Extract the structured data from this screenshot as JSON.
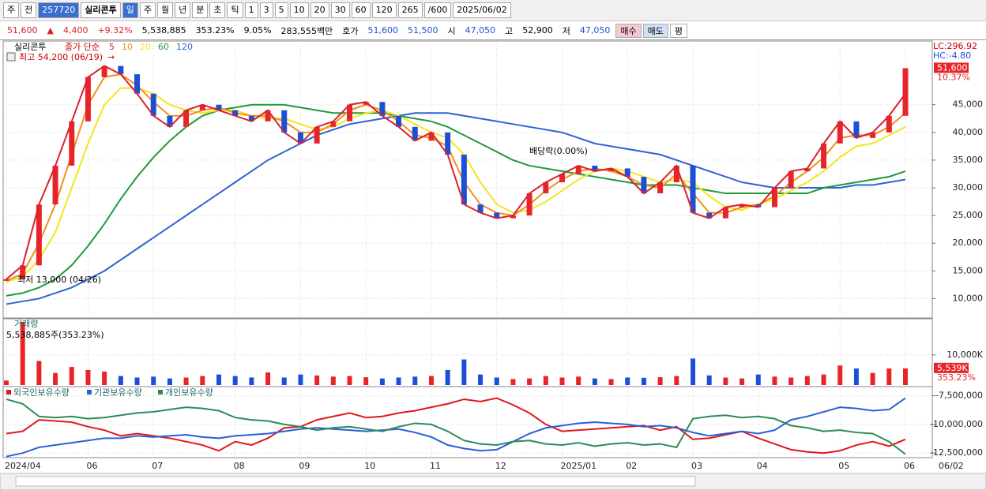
{
  "ui": {
    "toolbar": [
      "주",
      "전",
      "257720",
      "실리콘투",
      "일",
      "주",
      "월",
      "년",
      "분",
      "초",
      "틱",
      "1",
      "3",
      "5",
      "10",
      "20",
      "30",
      "60",
      "120",
      "265",
      "/600",
      "2025/06/02"
    ],
    "info": [
      "51,600",
      "▲",
      "4,400",
      "+9.32%",
      "5,538,885",
      "353.23%",
      "9.05%",
      "283,555백만",
      "호가",
      "51,600",
      "51,500",
      "시",
      "47,050",
      "고",
      "52,900",
      "저",
      "47,050",
      "매수",
      "매도",
      "평"
    ]
  },
  "chart_data": [
    {
      "type": "candlestick",
      "name": "실리콘투",
      "legend_label": "종가 단순",
      "annotations": {
        "high": "최고 54,200 (06/19)",
        "low": "최저 13,000 (04/26)",
        "dividend": "배당락(0.00%)",
        "lc": "LC:296.92",
        "hc": "HC:-4.80",
        "last": "51,600",
        "last_pct": "10.37%",
        "date": "06/02"
      },
      "categories": [
        "2024/04",
        null,
        null,
        null,
        null,
        "06",
        null,
        null,
        null,
        "07",
        null,
        null,
        null,
        null,
        "08",
        null,
        null,
        null,
        "09",
        null,
        null,
        null,
        "10",
        null,
        null,
        null,
        "11",
        null,
        null,
        null,
        "12",
        null,
        null,
        null,
        "2025/01",
        null,
        null,
        null,
        "02",
        null,
        null,
        null,
        "03",
        null,
        null,
        null,
        "04",
        null,
        null,
        null,
        null,
        "05",
        null,
        null,
        null,
        "06"
      ],
      "values": [
        13500,
        16000,
        27000,
        34000,
        42000,
        50000,
        52000,
        50500,
        47000,
        43000,
        41000,
        44000,
        45000,
        44000,
        43000,
        42000,
        44000,
        40000,
        38000,
        41000,
        42000,
        45000,
        45500,
        43000,
        41000,
        38500,
        40000,
        36000,
        27000,
        25500,
        24500,
        25000,
        29000,
        31000,
        32500,
        34000,
        33000,
        33500,
        32000,
        29000,
        31000,
        34000,
        25500,
        24500,
        26500,
        27000,
        26500,
        30000,
        33000,
        33500,
        38000,
        42000,
        39000,
        40000,
        43000,
        51600
      ],
      "up_color": "#e8242b",
      "down_color": "#1d4fd6",
      "series": [
        {
          "name": "5",
          "color": "#d8232a",
          "values": [
            13500,
            16000,
            27000,
            34000,
            42000,
            50000,
            52000,
            50500,
            47000,
            43000,
            41000,
            44000,
            45000,
            44000,
            43000,
            42000,
            44000,
            40000,
            38000,
            41000,
            42000,
            45000,
            45500,
            43000,
            41000,
            38500,
            40000,
            36000,
            27000,
            25500,
            24500,
            25000,
            29000,
            31000,
            32500,
            34000,
            33000,
            33500,
            32000,
            29000,
            31000,
            34000,
            25500,
            24500,
            26500,
            27000,
            26500,
            30000,
            33000,
            33500,
            38000,
            42000,
            39000,
            40000,
            43000,
            47000
          ]
        },
        {
          "name": "10",
          "color": "#f0901e",
          "values": [
            13200,
            14500,
            20000,
            27000,
            36000,
            45000,
            50000,
            50500,
            48500,
            45500,
            43000,
            43000,
            44000,
            44500,
            43500,
            43000,
            43000,
            42000,
            40000,
            40000,
            41500,
            44000,
            45000,
            44000,
            42000,
            39500,
            39000,
            37500,
            31000,
            27000,
            25500,
            25000,
            27000,
            29500,
            31500,
            33000,
            33500,
            33000,
            32000,
            30500,
            30000,
            32500,
            29000,
            25500,
            25500,
            26500,
            27000,
            28500,
            31000,
            33000,
            35500,
            39000,
            39500,
            39500,
            41000,
            43500
          ]
        },
        {
          "name": "20",
          "color": "#f5e51c",
          "values": [
            13000,
            14000,
            17000,
            22000,
            30000,
            38000,
            45000,
            48000,
            48000,
            47000,
            45000,
            44000,
            43500,
            44000,
            44000,
            43000,
            42500,
            42500,
            41500,
            40500,
            41000,
            42500,
            43500,
            44000,
            43000,
            41500,
            40000,
            39000,
            36000,
            31000,
            27000,
            25500,
            26000,
            27500,
            29500,
            31500,
            33000,
            33500,
            33000,
            32000,
            31000,
            31500,
            31000,
            28500,
            26500,
            26000,
            27000,
            28000,
            29500,
            31000,
            33000,
            35500,
            37500,
            38000,
            39500,
            41000
          ]
        },
        {
          "name": "60",
          "color": "#1f9a3a",
          "values": [
            10500,
            11000,
            12000,
            13500,
            16000,
            19500,
            23500,
            28000,
            32000,
            35500,
            38500,
            41000,
            43000,
            44000,
            44500,
            45000,
            45000,
            45000,
            44500,
            44000,
            43500,
            43500,
            43500,
            43500,
            43000,
            42500,
            42000,
            41000,
            39500,
            38000,
            36500,
            35000,
            34000,
            33500,
            33000,
            32500,
            32000,
            31500,
            31000,
            30500,
            30500,
            30500,
            30000,
            29500,
            29000,
            29000,
            29000,
            29000,
            29000,
            29000,
            30000,
            30500,
            31000,
            31500,
            32000,
            33000
          ]
        },
        {
          "name": "120",
          "color": "#2f62d6",
          "values": [
            9000,
            9500,
            10000,
            11000,
            12000,
            13500,
            15000,
            17000,
            19000,
            21000,
            23000,
            25000,
            27000,
            29000,
            31000,
            33000,
            35000,
            36500,
            38000,
            39500,
            40500,
            41500,
            42000,
            42500,
            43000,
            43500,
            43500,
            43500,
            43000,
            42500,
            42000,
            41500,
            41000,
            40500,
            40000,
            39000,
            38000,
            37500,
            37000,
            36500,
            36000,
            35000,
            34000,
            33000,
            32000,
            31000,
            30500,
            30000,
            30000,
            30000,
            30000,
            30000,
            30500,
            30500,
            31000,
            31500
          ]
        }
      ],
      "ylim": [
        6500,
        56500
      ],
      "yticks": [
        {
          "value": 10000,
          "label": "10,000"
        },
        {
          "value": 15000,
          "label": "15,000"
        },
        {
          "value": 20000,
          "label": "20,000"
        },
        {
          "value": 25000,
          "label": "25,000"
        },
        {
          "value": 30000,
          "label": "30,000"
        },
        {
          "value": 35000,
          "label": "35,000"
        },
        {
          "value": 40000,
          "label": "40,000"
        },
        {
          "value": 45000,
          "label": "45,000"
        }
      ],
      "grid": true
    },
    {
      "type": "bar",
      "name": "거래량",
      "subtitle": "5,538,885주(353.23%)",
      "last_label": "5,539K",
      "last_pct": "353.23%",
      "values": [
        1500,
        21000,
        8000,
        4000,
        6000,
        5000,
        4500,
        3000,
        2500,
        2800,
        2200,
        2500,
        3000,
        3500,
        3000,
        2500,
        4200,
        2500,
        3500,
        3200,
        2800,
        3000,
        2600,
        2200,
        2500,
        2800,
        3000,
        5000,
        8500,
        3500,
        2500,
        2000,
        2200,
        3000,
        2500,
        2800,
        2200,
        2000,
        2500,
        2400,
        2600,
        3000,
        8800,
        3200,
        2500,
        2200,
        3500,
        2800,
        2500,
        3000,
        3500,
        6500,
        5500,
        4000,
        5500,
        5539
      ],
      "ylim": [
        0,
        22000
      ],
      "yticks": [
        {
          "value": 10000,
          "label": "10,000K"
        }
      ],
      "grid": true
    },
    {
      "type": "line",
      "series": [
        {
          "name": "외국인보유수량",
          "color": "#e0181e",
          "values": [
            -10800000,
            -10600000,
            -9600000,
            -9700000,
            -9800000,
            -10200000,
            -10500000,
            -11000000,
            -10800000,
            -11000000,
            -11200000,
            -11500000,
            -11800000,
            -12300000,
            -11500000,
            -11800000,
            -11200000,
            -10300000,
            -10200000,
            -9600000,
            -9300000,
            -9000000,
            -9400000,
            -9300000,
            -9000000,
            -8800000,
            -8500000,
            -8200000,
            -7800000,
            -8000000,
            -7700000,
            -8300000,
            -9000000,
            -10000000,
            -10600000,
            -10500000,
            -10400000,
            -10300000,
            -10200000,
            -10100000,
            -10500000,
            -10200000,
            -11300000,
            -11200000,
            -10900000,
            -10600000,
            -11200000,
            -11700000,
            -12200000,
            -12400000,
            -12500000,
            -12300000,
            -11800000,
            -11500000,
            -11900000,
            -11300000
          ]
        },
        {
          "name": "기관보유수량",
          "color": "#2b5fd9",
          "values": [
            -12800000,
            -12500000,
            -12000000,
            -11800000,
            -11600000,
            -11400000,
            -11200000,
            -11200000,
            -11000000,
            -11100000,
            -11000000,
            -10900000,
            -11100000,
            -11200000,
            -11000000,
            -10900000,
            -10800000,
            -10600000,
            -10400000,
            -10300000,
            -10400000,
            -10500000,
            -10600000,
            -10500000,
            -10400000,
            -10700000,
            -11100000,
            -11800000,
            -12100000,
            -12300000,
            -12200000,
            -11500000,
            -10800000,
            -10300000,
            -10100000,
            -9900000,
            -9800000,
            -9900000,
            -10000000,
            -10200000,
            -10100000,
            -10300000,
            -10700000,
            -11000000,
            -10800000,
            -10600000,
            -10800000,
            -10500000,
            -9600000,
            -9300000,
            -8900000,
            -8500000,
            -8600000,
            -8800000,
            -8700000,
            -7700000
          ]
        },
        {
          "name": "개인보유수량",
          "color": "#2e8b57",
          "values": [
            -7800000,
            -8200000,
            -9300000,
            -9400000,
            -9300000,
            -9500000,
            -9400000,
            -9200000,
            -9000000,
            -8900000,
            -8700000,
            -8500000,
            -8600000,
            -8800000,
            -9400000,
            -9600000,
            -9700000,
            -10000000,
            -10200000,
            -10500000,
            -10300000,
            -10200000,
            -10400000,
            -10600000,
            -10200000,
            -9900000,
            -10000000,
            -10600000,
            -11400000,
            -11700000,
            -11800000,
            -11500000,
            -11400000,
            -11700000,
            -11800000,
            -11600000,
            -11900000,
            -11700000,
            -11600000,
            -11800000,
            -11700000,
            -12000000,
            -9500000,
            -9300000,
            -9200000,
            -9400000,
            -9300000,
            -9500000,
            -10100000,
            -10300000,
            -10600000,
            -10500000,
            -10700000,
            -10800000,
            -11500000,
            -12600000
          ]
        }
      ],
      "ylim": [
        -12900000,
        -6700000
      ],
      "yticks": [
        {
          "value": -7500000,
          "label": "-7,500,000"
        },
        {
          "value": -10000000,
          "label": "-10,000,000"
        },
        {
          "value": -12500000,
          "label": "-12,500,000"
        }
      ],
      "grid": true
    }
  ]
}
